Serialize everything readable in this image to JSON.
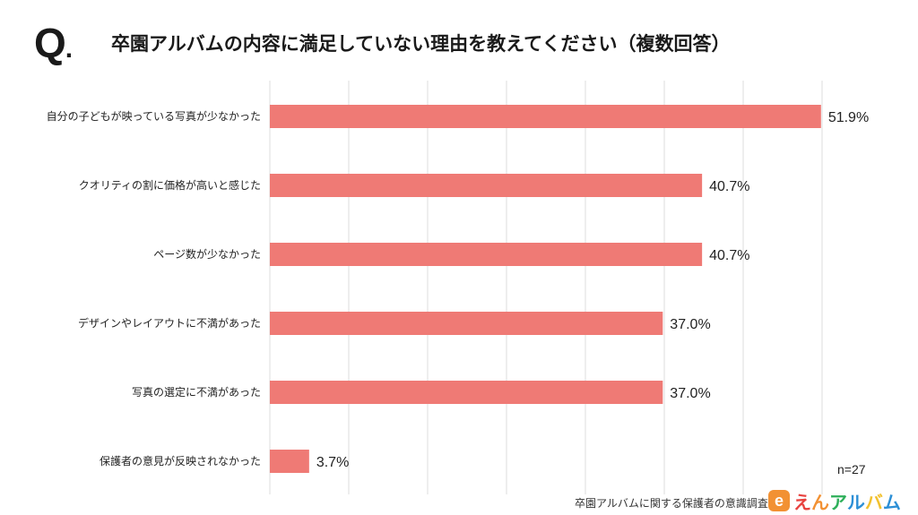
{
  "header": {
    "q_mark": "Q",
    "q_dot": ".",
    "title": "卒園アルバムの内容に満足していない理由を教えてください（複数回答）"
  },
  "chart_data": {
    "type": "bar",
    "orientation": "horizontal",
    "categories": [
      "自分の子どもが映っている写真が少なかった",
      "クオリティの割に価格が高いと感じた",
      "ページ数が少なかった",
      "デザインやレイアウトに不満があった",
      "写真の選定に不満があった",
      "保護者の意見が反映されなかった"
    ],
    "values": [
      51.9,
      40.7,
      40.7,
      37.0,
      37.0,
      3.7
    ],
    "value_labels": [
      "51.9%",
      "40.7%",
      "40.7%",
      "37.0%",
      "37.0%",
      "3.7%"
    ],
    "xlim": [
      0,
      52
    ],
    "grid": true,
    "bar_color": "#ef7a75",
    "grid_color": "#dddddd"
  },
  "footer": {
    "n_label": "n=27",
    "source": "卒園アルバムに関する保護者の意識調査",
    "logo_badge": "e",
    "logo_text_parts": [
      {
        "text": "え",
        "color": "#e8423f"
      },
      {
        "text": "ん",
        "color": "#f29133"
      },
      {
        "text": "ア",
        "color": "#2eaf5a"
      },
      {
        "text": "ル",
        "color": "#2c8fd6"
      },
      {
        "text": "バ",
        "color": "#f2c12e"
      },
      {
        "text": "ム",
        "color": "#2c8fd6"
      }
    ]
  }
}
